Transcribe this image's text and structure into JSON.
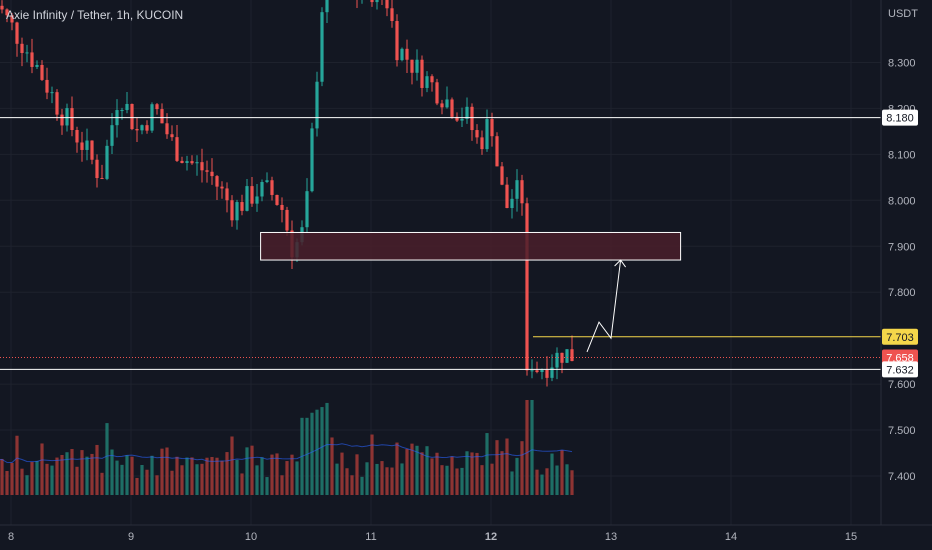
{
  "header": {
    "title": "Axie Infinity / Tether, 1h, KUCOIN"
  },
  "colors": {
    "background": "#131722",
    "up": "#26a69a",
    "down": "#ef5350",
    "up_volume": "#1e6e66",
    "down_volume": "#8e3433",
    "grid": "#1e222d",
    "axis_text": "#b2b5be",
    "level_line": "#ffffff",
    "target_line": "#f5d74a",
    "current_line": "#ef5350",
    "zone_fill": "#4a1f2a",
    "zone_border": "#ffffff",
    "ma_line": "#2962ff"
  },
  "chart_data": {
    "type": "candlestick",
    "symbol": "Axie Infinity / Tether",
    "interval": "1h",
    "exchange": "KUCOIN",
    "quote_currency": "USDT",
    "ylim": [
      7.33,
      8.45
    ],
    "y_ticks": [
      "8.300",
      "8.200",
      "8.100",
      "8.000",
      "7.900",
      "7.800",
      "7.600",
      "7.500",
      "7.400"
    ],
    "x_ticks": [
      "8",
      "9",
      "10",
      "11",
      "12",
      "13",
      "14",
      "15"
    ],
    "x_bold_tick": "12",
    "price_tags": {
      "resistance": "8.180",
      "target": "7.703",
      "current": "7.658",
      "support": "7.632"
    },
    "levels": {
      "resistance": 8.18,
      "target": 7.703,
      "current": 7.658,
      "support": 7.632
    },
    "zone": {
      "top": 7.93,
      "bottom": 7.87,
      "from_day": 10.08,
      "to_day": 13.58
    },
    "projection": [
      {
        "day": 12.8,
        "price": 7.67
      },
      {
        "day": 12.9,
        "price": 7.735
      },
      {
        "day": 13.0,
        "price": 7.7
      },
      {
        "day": 13.08,
        "price": 7.87
      }
    ],
    "volume_peak": 8
  }
}
